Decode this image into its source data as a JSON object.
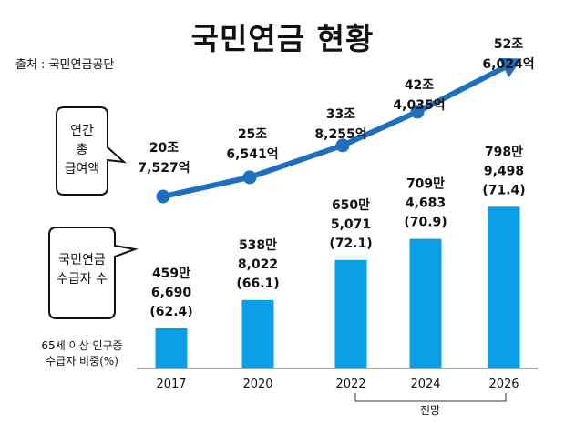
{
  "title": "국민연금 현황",
  "source": "출처 : 국민연금공단",
  "callouts": {
    "total_benefit": [
      "연간",
      "총",
      "급여액"
    ],
    "recipients": [
      "국민연금",
      "수급자 수"
    ]
  },
  "ratio_label": [
    "65세 이상 인구중",
    "수급자 비중(%)"
  ],
  "forecast_label": "전망",
  "colors": {
    "bar": "#0a9ee6",
    "line": "#1f6fc1"
  },
  "chart_data": [
    {
      "type": "line",
      "x": [
        "2017",
        "2020",
        "2022",
        "2024",
        "2026"
      ],
      "series": [
        {
          "values": [
            20.7527,
            25.6541,
            33.8255,
            42.4035,
            52.6024
          ]
        }
      ],
      "data_labels": [
        [
          "20조",
          "7,527억"
        ],
        [
          "25조",
          "6,541억"
        ],
        [
          "33조",
          "8,255억"
        ],
        [
          "42조",
          "4,035억"
        ],
        [
          "52조",
          "6,024억"
        ]
      ]
    },
    {
      "type": "bar",
      "categories": [
        "2017",
        "2020",
        "2022",
        "2024",
        "2026"
      ],
      "series": [
        {
          "values": [
            4596690,
            5388022,
            6505071,
            7094683,
            7989498
          ]
        }
      ],
      "share_values": [
        62.4,
        66.1,
        72.1,
        70.9,
        71.4
      ],
      "data_labels": [
        [
          "459만",
          "6,690",
          "(62.4)"
        ],
        [
          "538만",
          "8,022",
          "(66.1)"
        ],
        [
          "650만",
          "5,071",
          "(72.1)"
        ],
        [
          "709만",
          "4,683",
          "(70.9)"
        ],
        [
          "798만",
          "9,498",
          "(71.4)"
        ]
      ]
    }
  ]
}
